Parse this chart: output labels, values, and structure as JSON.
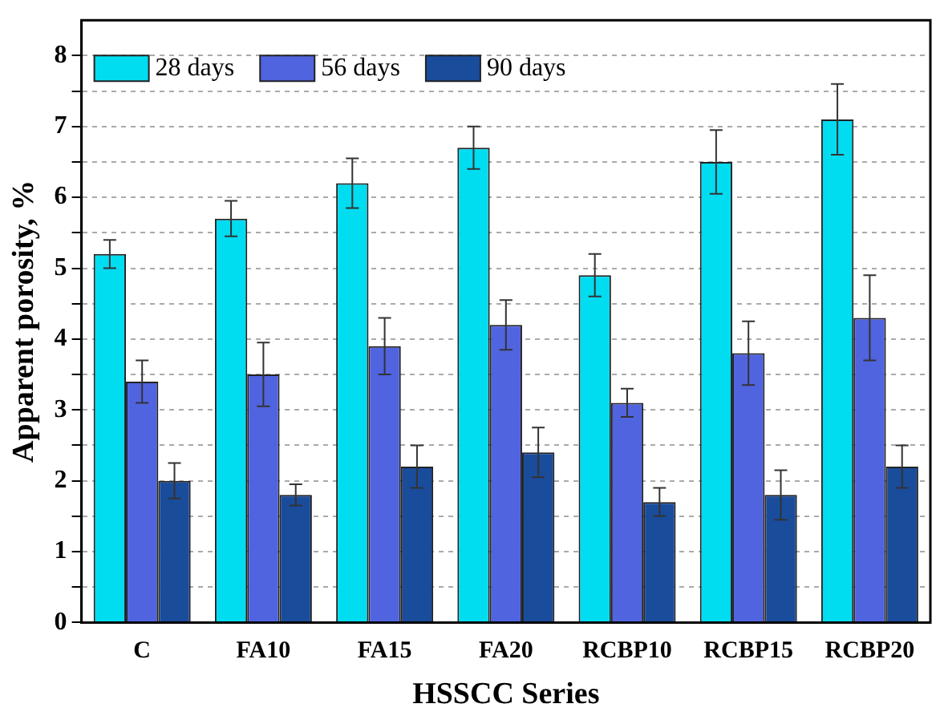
{
  "chart_data": {
    "type": "bar",
    "xlabel": "HSSCC Series",
    "ylabel": "Apparent porosity, %",
    "categories": [
      "C",
      "FA10",
      "FA15",
      "FA20",
      "RCBP10",
      "RCBP15",
      "RCBP20"
    ],
    "series": [
      {
        "name": "28 days",
        "color": "#00dcf0",
        "values": [
          5.2,
          5.7,
          6.2,
          6.7,
          4.9,
          6.5,
          7.1
        ],
        "errors": [
          0.2,
          0.25,
          0.35,
          0.3,
          0.3,
          0.45,
          0.5
        ]
      },
      {
        "name": "56 days",
        "color": "#5064e0",
        "values": [
          3.4,
          3.5,
          3.9,
          4.2,
          3.1,
          3.8,
          4.3
        ],
        "errors": [
          0.3,
          0.45,
          0.4,
          0.35,
          0.2,
          0.45,
          0.6
        ]
      },
      {
        "name": "90 days",
        "color": "#1a4c9c",
        "values": [
          2.0,
          1.8,
          2.2,
          2.4,
          1.7,
          1.8,
          2.2
        ],
        "errors": [
          0.25,
          0.15,
          0.3,
          0.35,
          0.2,
          0.35,
          0.3
        ]
      }
    ],
    "ylim": [
      0,
      8.5
    ],
    "yticks": [
      0,
      {
        "value": 0.5,
        "label": null
      },
      1,
      {
        "value": 1.5,
        "label": null
      },
      2,
      {
        "value": 2.5,
        "label": null
      },
      3,
      {
        "value": 3.5,
        "label": null
      },
      4,
      {
        "value": 4.5,
        "label": null
      },
      5,
      {
        "value": 5.5,
        "label": null
      },
      6,
      {
        "value": 6.5,
        "label": null
      },
      7,
      {
        "value": 7.5,
        "label": null
      },
      8
    ],
    "grid": "y",
    "legend": "top left"
  }
}
